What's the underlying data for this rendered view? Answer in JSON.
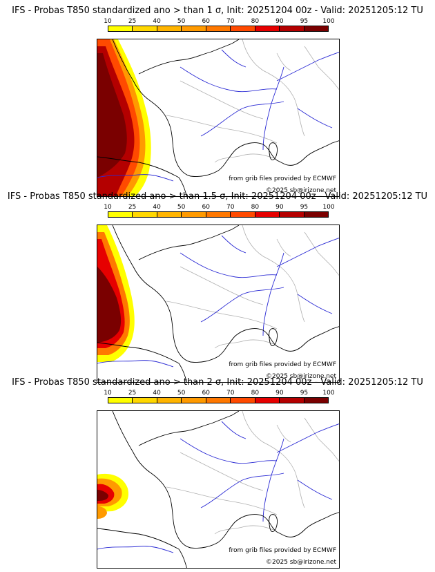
{
  "colors": {
    "accent_dark": "#6b0000",
    "coast": "#000000",
    "rivers": "#2a2ad4",
    "borders": "#b0b0b0"
  },
  "scale": {
    "labels": [
      "10",
      "25",
      "40",
      "50",
      "60",
      "70",
      "80",
      "90",
      "95",
      "100"
    ],
    "colors": [
      "#ffff00",
      "#ffd700",
      "#ffb400",
      "#ff9a00",
      "#ff7800",
      "#ff4a00",
      "#e60000",
      "#b40000",
      "#7a0000"
    ]
  },
  "panels": [
    {
      "title": "IFS - Probas T850  standardized ano > than 1 σ, Init: 20251204 00z - Valid: 20251205:12 TU",
      "credit_source": "from grib files provided by ECMWF",
      "credit_copyright": "©2025 sb@irizone.net",
      "level": "high"
    },
    {
      "title": "IFS - Probas T850  standardized ano > than 1.5 σ, Init: 20251204 00z - Valid: 20251205:12 TU",
      "credit_source": "from grib files provided by ECMWF",
      "credit_copyright": "©2025 sb@irizone.net",
      "level": "medium"
    },
    {
      "title": "IFS - Probas T850  standardized ano > than 2 σ, Init: 20251204 00z - Valid: 20251205:12 TU",
      "credit_source": "from grib files provided by ECMWF",
      "credit_copyright": "©2025 sb@irizone.net",
      "level": "low"
    }
  ]
}
